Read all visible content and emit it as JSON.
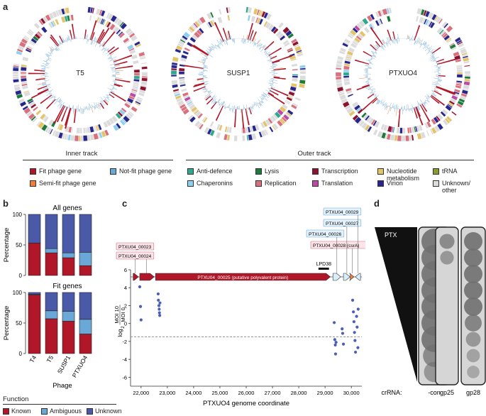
{
  "panel_labels": {
    "a": "a",
    "b": "b",
    "c": "c",
    "d": "d"
  },
  "panel_a": {
    "circles": [
      "T5",
      "SUSP1",
      "PTXUO4"
    ],
    "inner_track": {
      "title": "Inner track",
      "items": [
        {
          "label": "Fit phage gene",
          "color": "#b0182a"
        },
        {
          "label": "Not-fit phage gene",
          "color": "#6aa8d8"
        },
        {
          "label": "Semi-fit phage gene",
          "color": "#ef7d3c"
        }
      ]
    },
    "outer_track": {
      "title": "Outer track",
      "items": [
        {
          "label": "Anti-defence",
          "color": "#2fa98c"
        },
        {
          "label": "Lysis",
          "color": "#1d7a3a"
        },
        {
          "label": "Transcription",
          "color": "#8c1330"
        },
        {
          "label": "Nucleotide\nmetabolism",
          "color": "#e3c46a"
        },
        {
          "label": "tRNA",
          "color": "#8a9a2e"
        },
        {
          "label": "Chaperonins",
          "color": "#8fd0f0"
        },
        {
          "label": "Replication",
          "color": "#d9707e"
        },
        {
          "label": "Translation",
          "color": "#b94aa6"
        },
        {
          "label": "Virion",
          "color": "#27268c"
        },
        {
          "label": "Unknown/\nother",
          "color": "#dcdcdc"
        }
      ]
    }
  },
  "panel_b": {
    "chart_data": [
      {
        "type": "bar",
        "title": "All genes",
        "ylabel": "Percentage",
        "categories": [
          "T4",
          "T5",
          "SUSP1",
          "PTXUO4"
        ],
        "series": [
          {
            "name": "Known",
            "values": [
              53,
              37,
              29,
              16
            ]
          },
          {
            "name": "Ambiguous",
            "values": [
              0,
              7,
              8,
              22
            ]
          },
          {
            "name": "Unknown",
            "values": [
              47,
              56,
              63,
              62
            ]
          }
        ],
        "ylim": [
          0,
          100
        ],
        "yticks": [
          "0",
          "50",
          "100"
        ]
      },
      {
        "type": "bar",
        "title": "Fit genes",
        "ylabel": "Percentage",
        "xlabel": "Phage",
        "categories": [
          "T4",
          "T5",
          "SUSP1",
          "PTXUO4"
        ],
        "series": [
          {
            "name": "Known",
            "values": [
              96,
              57,
              53,
              32
            ]
          },
          {
            "name": "Ambiguous",
            "values": [
              1,
              13,
              16,
              24
            ]
          },
          {
            "name": "Unknown",
            "values": [
              3,
              30,
              31,
              44
            ]
          }
        ],
        "ylim": [
          0,
          100
        ],
        "yticks": [
          "0",
          "50",
          "100"
        ]
      }
    ],
    "legend_title": "Function",
    "legend": [
      {
        "label": "Known",
        "color": "#b0182a"
      },
      {
        "label": "Ambiguous",
        "color": "#6aa8d8"
      },
      {
        "label": "Unknown",
        "color": "#4a5aa8"
      }
    ],
    "xlabel": "Phage"
  },
  "panel_c": {
    "gene_labels": [
      "PTXU04_00023",
      "PTXU04_00024",
      "PTXU04_00025 (putative polyvalent protein)",
      "PTXU04_00026",
      "PTXU04_00027",
      "PTXU04_00028 (csrA)",
      "PTXU04_00029",
      "LPD38"
    ],
    "chart_data": {
      "type": "scatter",
      "xlabel": "PTXUO4 genome coordinate",
      "ylabel": "log2 MOI 10 / MOI 0",
      "ylabel_parts": {
        "log": "log",
        "sub": "2",
        "num": "MOI 10",
        "den": "MOI 0"
      },
      "xlim": [
        21600,
        30400
      ],
      "ylim": [
        -7,
        6
      ],
      "xticks": [
        "22,000",
        "23,000",
        "24,000",
        "25,000",
        "26,000",
        "27,000",
        "28,000",
        "29,000",
        "30,000"
      ],
      "xtick_values": [
        22000,
        23000,
        24000,
        25000,
        26000,
        27000,
        28000,
        29000,
        30000
      ],
      "yticks": [
        "6",
        "4",
        "2",
        "0",
        "-2",
        "-4",
        "-6"
      ],
      "ytick_values": [
        6,
        4,
        2,
        0,
        -2,
        -4,
        -6
      ],
      "threshold": -1.5,
      "points": [
        {
          "x": 21950,
          "y": 4.1
        },
        {
          "x": 21980,
          "y": 1.9
        },
        {
          "x": 22000,
          "y": 0.4
        },
        {
          "x": 22650,
          "y": 3.3
        },
        {
          "x": 22660,
          "y": 2.6
        },
        {
          "x": 22680,
          "y": 2.0
        },
        {
          "x": 22690,
          "y": 1.6
        },
        {
          "x": 22700,
          "y": 1.2
        },
        {
          "x": 22710,
          "y": 0.9
        },
        {
          "x": 22720,
          "y": 2.3
        },
        {
          "x": 29350,
          "y": 0.1
        },
        {
          "x": 29370,
          "y": -1.8
        },
        {
          "x": 29390,
          "y": -2.4
        },
        {
          "x": 29400,
          "y": -3.4
        },
        {
          "x": 29420,
          "y": -2.1
        },
        {
          "x": 29650,
          "y": -0.6
        },
        {
          "x": 29670,
          "y": -1.1
        },
        {
          "x": 29700,
          "y": -2.3
        },
        {
          "x": 30050,
          "y": 2.6
        },
        {
          "x": 30080,
          "y": 1.3
        },
        {
          "x": 30100,
          "y": 0.2
        },
        {
          "x": 30120,
          "y": -1.0
        },
        {
          "x": 30140,
          "y": -1.9
        },
        {
          "x": 30160,
          "y": -3.2
        },
        {
          "x": 30200,
          "y": 0.8
        },
        {
          "x": 30220,
          "y": -0.4
        },
        {
          "x": 30250,
          "y": -2.7
        },
        {
          "x": 30260,
          "y": 1.6
        }
      ]
    }
  },
  "panel_d": {
    "ptx_label": "PTX",
    "crrna_label": "crRNA:",
    "columns": [
      "-con",
      "gp25",
      "gp28"
    ]
  }
}
